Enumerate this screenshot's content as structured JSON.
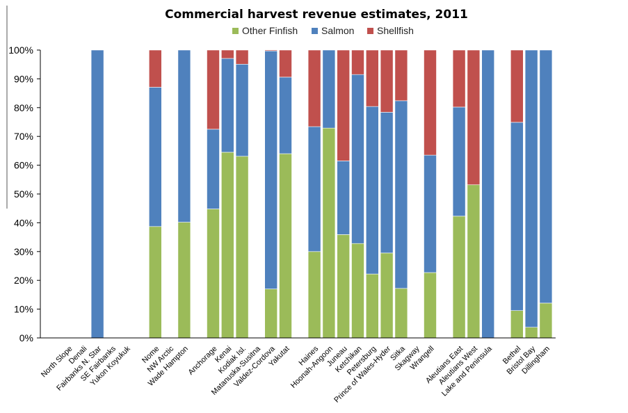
{
  "chart_data": {
    "type": "bar",
    "stacked": true,
    "title": "Commercial harvest revenue estimates, 2011",
    "xlabel": "",
    "ylabel": "",
    "ylim": [
      0,
      100
    ],
    "ytick_labels": [
      "0%",
      "10%",
      "20%",
      "30%",
      "40%",
      "50%",
      "60%",
      "70%",
      "80%",
      "90%",
      "100%"
    ],
    "legend_position": "top",
    "grid": false,
    "categories": [
      "North Slope",
      "Denali",
      "Fairbanks N. Star",
      "SE Fairbanks",
      "Yukon Koyukuk",
      "Nome",
      "NW Arctic",
      "Wade Hampton",
      "Anchorage",
      "Kenai",
      "Kodiak Isl.",
      "Matanuska-Susitna",
      "Valdez-Cordova",
      "Yakutat",
      "Haines",
      "Hoonah-Angoon",
      "Juneau",
      "Ketchikan",
      "Petersburg",
      "Prince of Wales-Hyder",
      "Sitka",
      "Skagway",
      "Wrangell",
      "Aleutians East",
      "Aleutians West",
      "Lake and Peninsula",
      "Bethel",
      "Bristol Bay",
      "Dillingham"
    ],
    "slots": [
      0,
      1,
      2,
      3,
      4,
      6,
      7,
      8,
      10,
      11,
      12,
      13,
      14,
      15,
      17,
      18,
      19,
      20,
      21,
      22,
      23,
      24,
      25,
      27,
      28,
      29,
      31,
      32,
      33
    ],
    "series": [
      {
        "name": "Other Finfish",
        "color": "#9BBB59",
        "values": [
          0,
          0,
          0,
          0,
          0,
          38.7,
          0,
          40.2,
          44.8,
          64.5,
          63.1,
          0,
          17.0,
          64.0,
          30.0,
          72.9,
          35.9,
          32.8,
          22.2,
          29.5,
          17.2,
          0,
          22.7,
          42.3,
          53.2,
          0,
          9.5,
          3.7,
          12.1
        ]
      },
      {
        "name": "Salmon",
        "color": "#4F81BD",
        "values": [
          0,
          0,
          100,
          0,
          0,
          48.4,
          0,
          59.8,
          27.7,
          32.6,
          32.0,
          0,
          82.7,
          26.6,
          43.4,
          27.1,
          25.6,
          58.7,
          58.2,
          48.9,
          65.2,
          0,
          40.8,
          37.9,
          0,
          100,
          65.4,
          96.3,
          87.9
        ]
      },
      {
        "name": "Shellfish",
        "color": "#C0504D",
        "values": [
          0,
          0,
          0,
          0,
          0,
          12.9,
          0,
          0,
          27.5,
          2.9,
          4.9,
          0,
          0.3,
          9.4,
          26.6,
          0,
          38.5,
          8.5,
          19.6,
          21.6,
          17.6,
          0,
          36.5,
          19.8,
          46.8,
          0,
          25.1,
          0,
          0
        ]
      }
    ]
  }
}
